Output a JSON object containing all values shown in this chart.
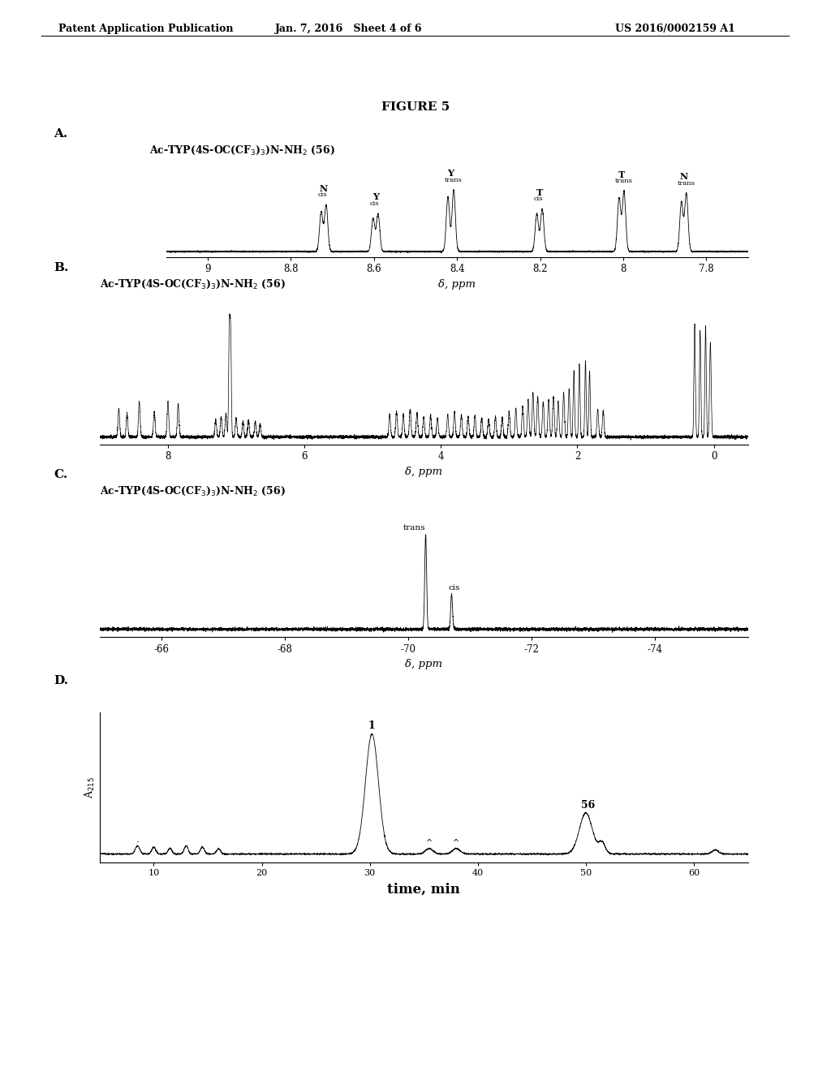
{
  "bg_color": "#ffffff",
  "header_left": "Patent Application Publication",
  "header_mid": "Jan. 7, 2016   Sheet 4 of 6",
  "header_right": "US 2016/0002159 A1",
  "figure_title": "FIGURE 5",
  "panel_A_label": "A.",
  "panel_B_label": "B.",
  "panel_C_label": "C.",
  "panel_D_label": "D.",
  "compound_label": "Ac-TYP(4S-OC(CF$_3$)$_3$)N-NH$_2$ (56)",
  "panel_A_xlabel": "δ, ppm",
  "panel_B_xlabel": "δ, ppm",
  "panel_C_xlabel": "δ, ppm",
  "panel_D_xlabel": "time, min",
  "panel_D_ylabel": "A$_{215}$",
  "panel_A_xlim": [
    9.1,
    7.7
  ],
  "panel_A_xticks": [
    9.0,
    8.8,
    8.6,
    8.4,
    8.2,
    8.0,
    7.8
  ],
  "panel_B_xlim": [
    9.0,
    -0.5
  ],
  "panel_B_xticks": [
    8,
    6,
    4,
    2,
    0
  ],
  "panel_C_xlim": [
    -65.0,
    -75.5
  ],
  "panel_C_xticks": [
    -66,
    -68,
    -70,
    -72,
    -74
  ],
  "panel_D_xlim": [
    5,
    65
  ],
  "panel_D_xticks": [
    10,
    20,
    30,
    40,
    50,
    60
  ]
}
